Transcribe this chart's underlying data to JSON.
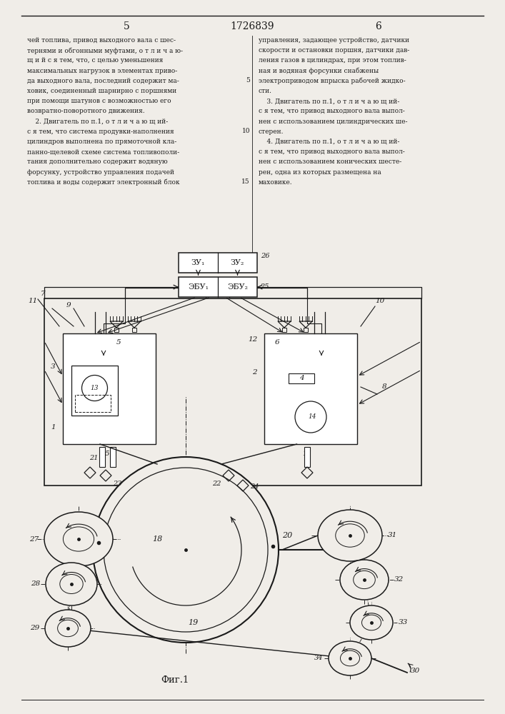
{
  "page_number_left": "5",
  "page_number_center": "1726839",
  "page_number_right": "6",
  "background_color": "#f0ede8",
  "text_color": "#1a1a1a",
  "line_color": "#1a1a1a",
  "fig_label": "Фиг.1",
  "left_text_lines": [
    "чей топлива, привод выходного вала с шес-",
    "тернями и обгонными муфтами, о т л и ч а ю-",
    "щ и й с я тем, что, с целью уменьшения",
    "максимальных нагрузок в элементах приво-",
    "да выходного вала, последний содержит ма-",
    "ховик, соединенный шарнирно с поршнями",
    "при помощи шатунов с возможностью его",
    "возвратно-поворотного движения.",
    "    2. Двигатель по п.1, о т л и ч а ю щ ий-",
    "с я тем, что система продувки-наполнения",
    "цилиндров выполнена по прямоточной кла-",
    "панно-щелевой схеме система топливополи-",
    "тания дополнительно содержит водяную",
    "форсунку, устройство управления подачей",
    "топлива и воды содержит электронный блок"
  ],
  "right_text_lines": [
    "управления, задающее устройство, датчики",
    "скорости и остановки поршня, датчики дав-",
    "ления газов в цилиндрах, при этом топлив-",
    "ная и водяная форсунки снабжены",
    "электроприводом впрыска рабочей жидко-",
    "сти.",
    "    3. Двигатель по п.1, о т л и ч а ю щ ий-",
    "с я тем, что привод выходного вала выпол-",
    "нен с использованием цилиндрических ше-",
    "стерен.",
    "    4. Двигатель по п.1, о т л и ч а ю щ ий-",
    "с я тем, что привод выходного вала выпол-",
    "нен с использованием конических шесте-",
    "рен, одна из которых размещена на",
    "маховике."
  ]
}
